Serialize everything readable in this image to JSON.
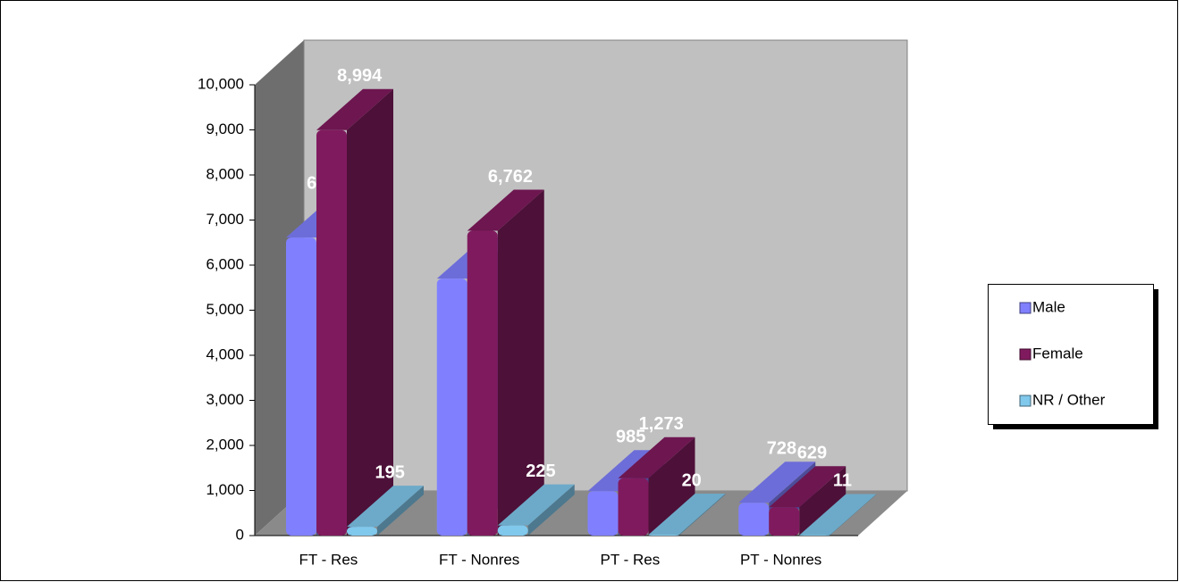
{
  "chart_data": {
    "type": "bar3d",
    "categories": [
      "FT - Res",
      "FT - Nonres",
      "PT - Res",
      "PT - Nonres"
    ],
    "series": [
      {
        "name": "Male",
        "color": "#8080ff",
        "values": [
          6612,
          5700,
          985,
          728
        ],
        "value_labels": [
          "6,612",
          null,
          "985",
          "728"
        ]
      },
      {
        "name": "Female",
        "color": "#801a5e",
        "values": [
          8994,
          6762,
          1273,
          629
        ],
        "value_labels": [
          "8,994",
          "6,762",
          "1,273",
          "629"
        ]
      },
      {
        "name": "NR / Other",
        "color": "#80c8ec",
        "values": [
          195,
          225,
          20,
          11
        ],
        "value_labels": [
          "195",
          "225",
          "20",
          "11"
        ]
      }
    ],
    "ylim": [
      0,
      10000
    ],
    "yticks": [
      0,
      {
        "value": 1000,
        "label": "1,000"
      },
      {
        "value": 2000,
        "label": "2,000"
      },
      {
        "value": 3000,
        "label": "3,000"
      },
      {
        "value": 4000,
        "label": "4,000"
      },
      {
        "value": 5000,
        "label": "5,000"
      },
      {
        "value": 6000,
        "label": "6,000"
      },
      {
        "value": 7000,
        "label": "7,000"
      },
      {
        "value": 8000,
        "label": "8,000"
      },
      {
        "value": 9000,
        "label": "9,000"
      },
      {
        "value": 10000,
        "label": "10,000"
      }
    ],
    "legend": "right"
  }
}
